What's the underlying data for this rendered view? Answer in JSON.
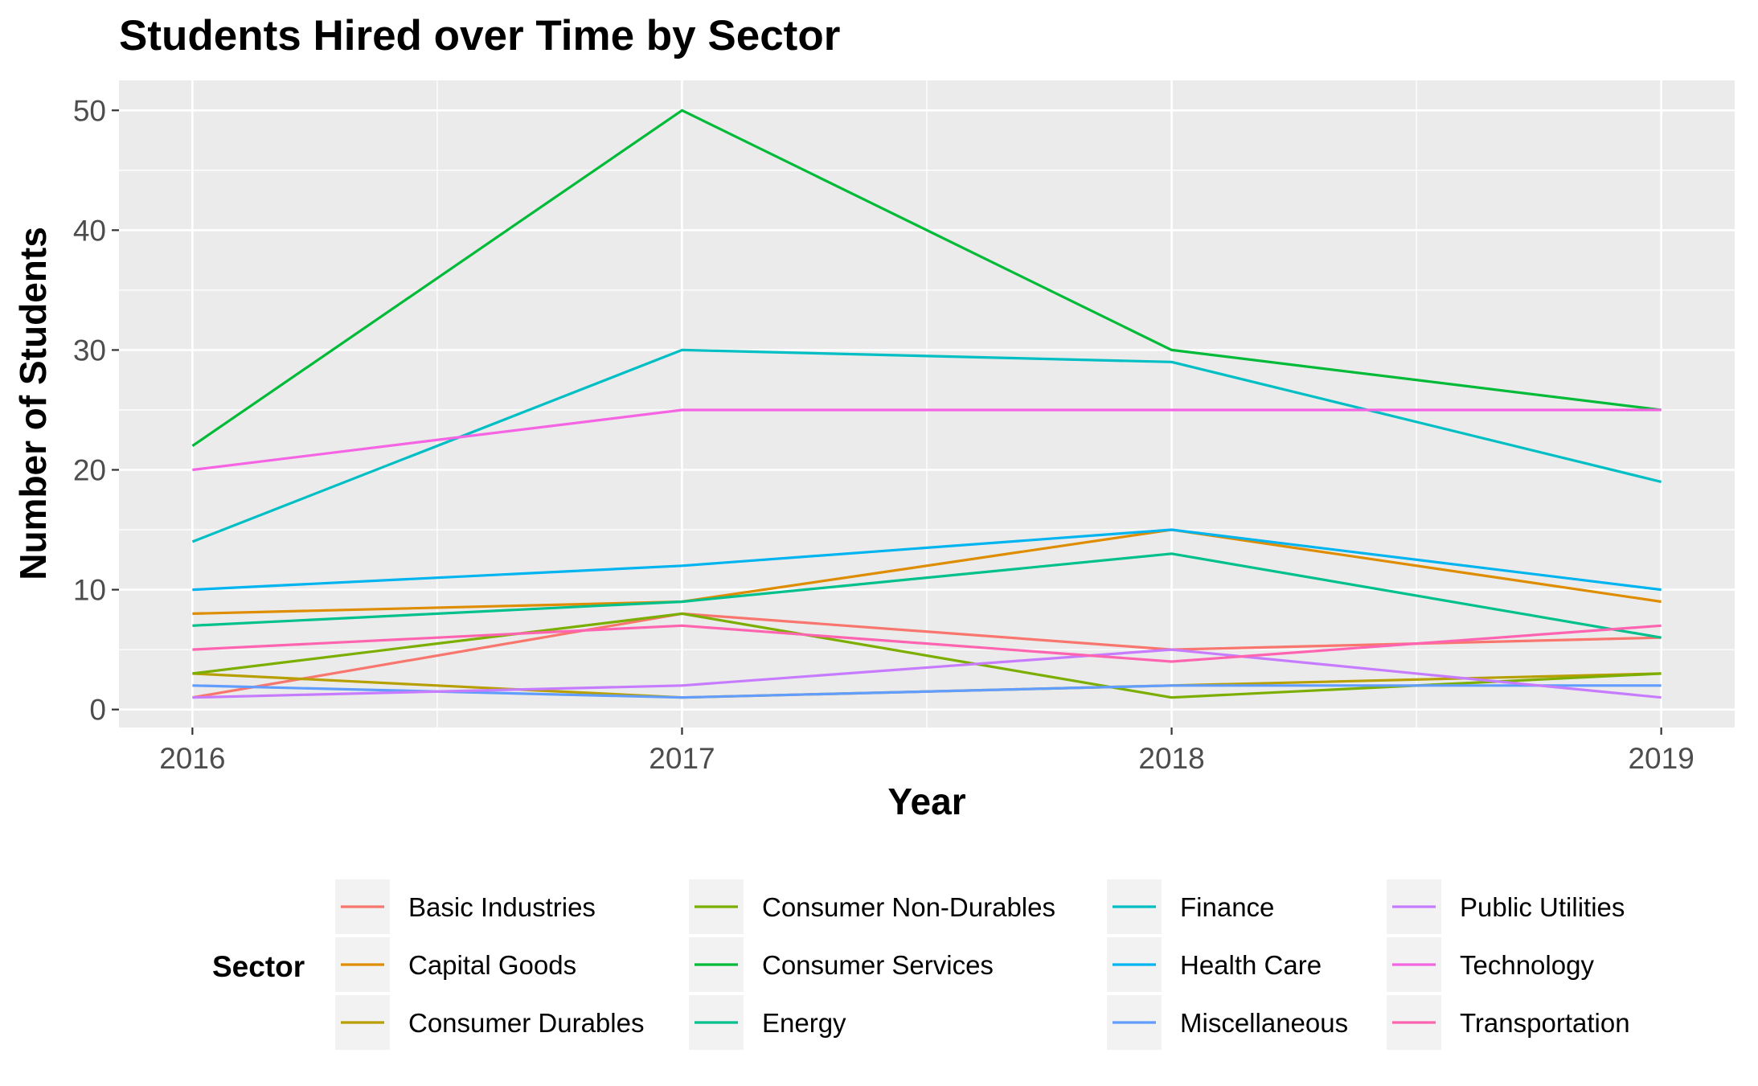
{
  "chart_data": {
    "type": "line",
    "title": "Students Hired over Time by Sector",
    "xlabel": "Year",
    "ylabel": "Number of Students",
    "x": [
      2016,
      2017,
      2018,
      2019
    ],
    "x_tick_labels": [
      "2016",
      "2017",
      "2018",
      "2019"
    ],
    "xlim": [
      2015.85,
      2019.15
    ],
    "ylim": [
      -1.5,
      52.5
    ],
    "y_ticks": [
      0,
      10,
      20,
      30,
      40,
      50
    ],
    "y_tick_labels": [
      "0",
      "10",
      "20",
      "30",
      "40",
      "50"
    ],
    "grid": true,
    "legend": {
      "title": "Sector",
      "position": "bottom",
      "columns": 4
    },
    "series": [
      {
        "name": "Basic Industries",
        "color": "#F8766D",
        "values": [
          1,
          8,
          5,
          6
        ]
      },
      {
        "name": "Capital Goods",
        "color": "#DE8C00",
        "values": [
          8,
          9,
          15,
          9
        ]
      },
      {
        "name": "Consumer Durables",
        "color": "#B79F00",
        "values": [
          3,
          1,
          2,
          3
        ]
      },
      {
        "name": "Consumer Non-Durables",
        "color": "#7CAE00",
        "values": [
          3,
          8,
          1,
          3
        ]
      },
      {
        "name": "Consumer Services",
        "color": "#00BA38",
        "values": [
          22,
          50,
          30,
          25
        ]
      },
      {
        "name": "Energy",
        "color": "#00C08B",
        "values": [
          7,
          9,
          13,
          6
        ]
      },
      {
        "name": "Finance",
        "color": "#00BFC4",
        "values": [
          14,
          30,
          29,
          19
        ]
      },
      {
        "name": "Health Care",
        "color": "#00B4F0",
        "values": [
          10,
          12,
          15,
          10
        ]
      },
      {
        "name": "Miscellaneous",
        "color": "#619CFF",
        "values": [
          2,
          1,
          2,
          2
        ]
      },
      {
        "name": "Public Utilities",
        "color": "#C77CFF",
        "values": [
          1,
          2,
          5,
          1
        ]
      },
      {
        "name": "Technology",
        "color": "#F564E3",
        "values": [
          20,
          25,
          25,
          25
        ]
      },
      {
        "name": "Transportation",
        "color": "#FF64B0",
        "values": [
          5,
          7,
          4,
          7
        ]
      }
    ]
  }
}
